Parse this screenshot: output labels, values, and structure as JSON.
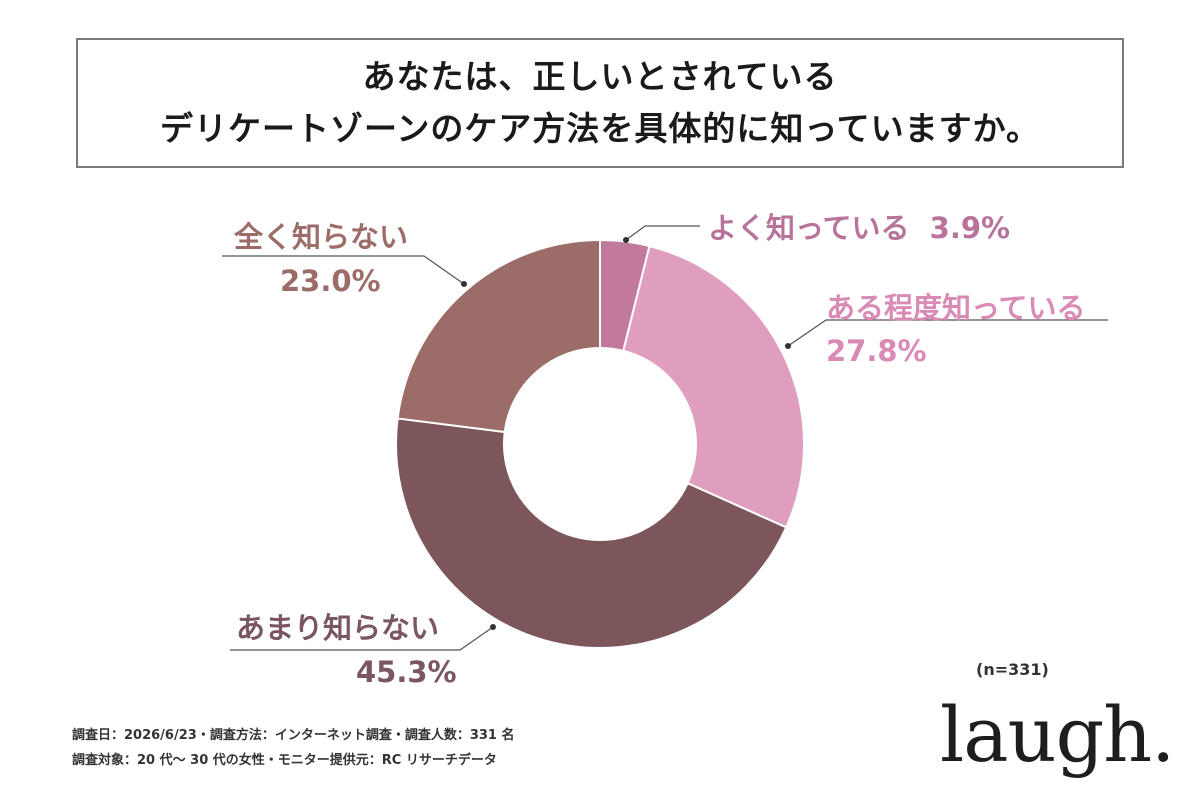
{
  "title": {
    "line1": "あなたは、正しいとされている",
    "line2": "デリケートゾーンのケア方法を具体的に知っていますか。"
  },
  "chart_data": {
    "type": "pie",
    "donut": true,
    "categories": [
      "よく知っている",
      "ある程度知っている",
      "あまり知らない",
      "全く知らない"
    ],
    "values": [
      3.9,
      27.8,
      45.3,
      23.0
    ],
    "labels": [
      "3.9%",
      "27.8%",
      "45.3%",
      "23.0%"
    ],
    "colors": [
      "#c27a9c",
      "#e09ebf",
      "#7d565c",
      "#9c6d68"
    ],
    "label_colors": [
      "#b8739a",
      "#d98bb5",
      "#7a5660",
      "#9c6d68"
    ]
  },
  "sample_note": "(n=331)",
  "footnote": {
    "line1": "調査日：2026/6/23・調査方法：インターネット調査・調査人数：331 名",
    "line2": "調査対象：20 代〜 30 代の女性・モニター提供元：RC リサーチデータ"
  },
  "brand": "laugh."
}
